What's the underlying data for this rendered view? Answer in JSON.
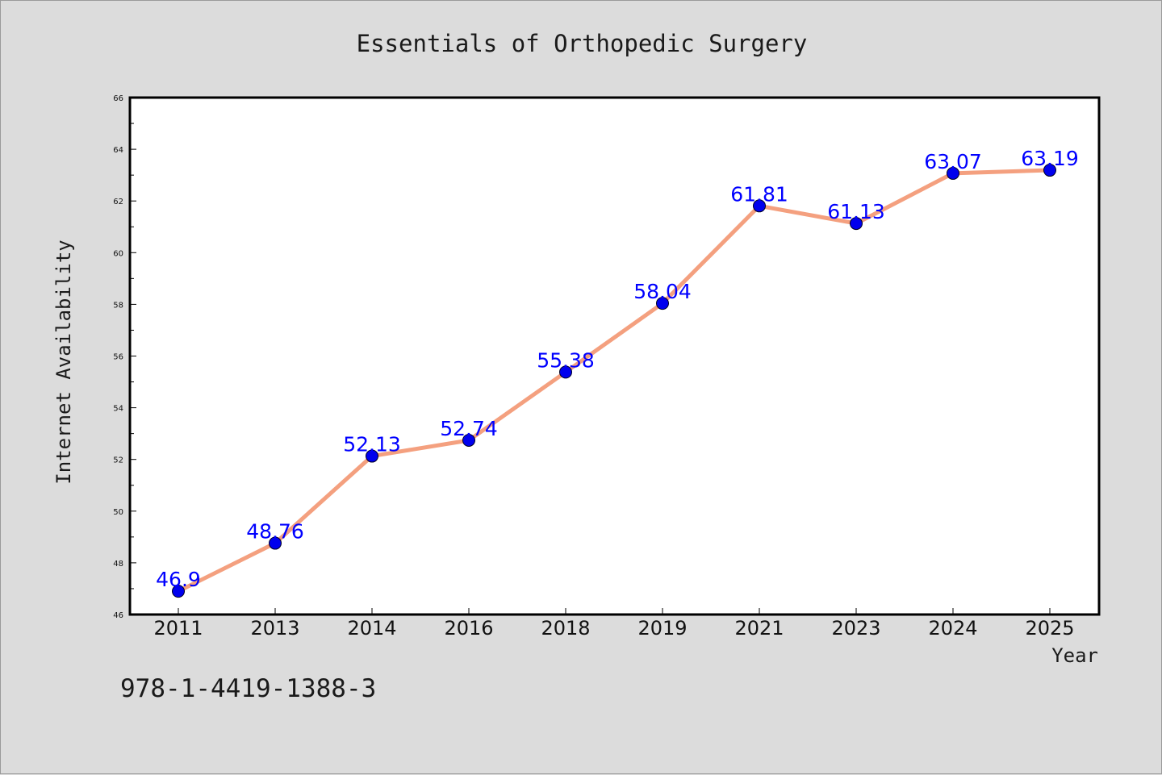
{
  "isbn": "978-1-4419-1388-3",
  "colors": {
    "background": "#dcdcdc",
    "plot_background": "#ffffff",
    "line": "#f4a07f",
    "marker": "#0000ee",
    "label": "#0000ff"
  },
  "chart_data": {
    "type": "line",
    "title": "Essentials of Orthopedic Surgery",
    "xlabel": "Year",
    "ylabel": "Internet Availability",
    "categories": [
      "2011",
      "2013",
      "2014",
      "2016",
      "2018",
      "2019",
      "2021",
      "2023",
      "2024",
      "2025"
    ],
    "series": [
      {
        "values": [
          46.9,
          48.76,
          52.13,
          52.74,
          55.38,
          58.04,
          61.81,
          61.13,
          63.07,
          63.19
        ],
        "labels": [
          "46.9",
          "48.76",
          "52.13",
          "52.74",
          "55.38",
          "58.04",
          "61.81",
          "61.13",
          "63.07",
          "63.19"
        ]
      }
    ],
    "ylim": [
      46,
      66
    ],
    "yticks": [
      "46",
      "48",
      "50",
      "52",
      "54",
      "56",
      "58",
      "60",
      "62",
      "64",
      "66"
    ],
    "grid": false,
    "legend": "none"
  }
}
